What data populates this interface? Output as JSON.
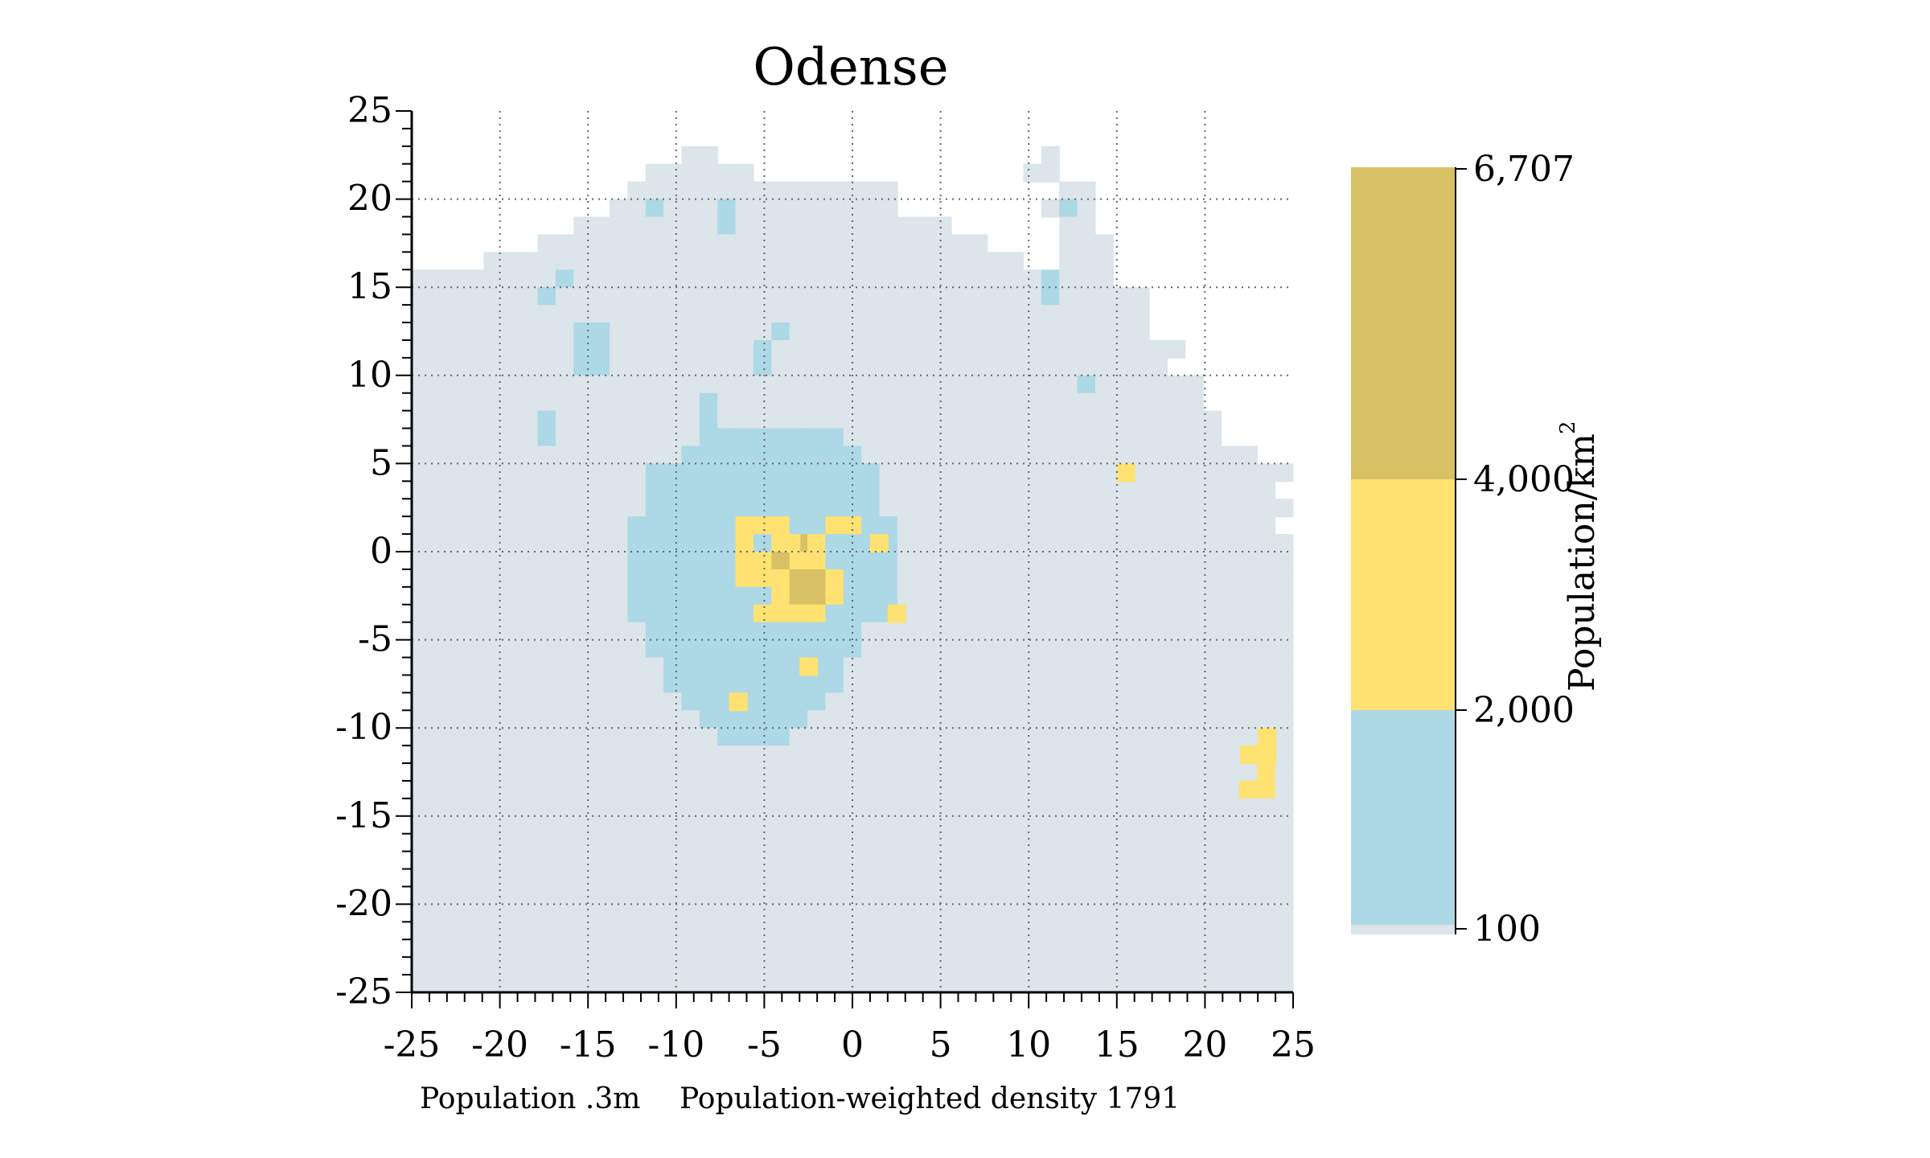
{
  "chart_data": {
    "type": "heatmap",
    "title": "Odense",
    "xlim": [
      -25,
      25
    ],
    "ylim": [
      -25,
      25
    ],
    "x_ticks": [
      "-25",
      "-20",
      "-15",
      "-10",
      "-5",
      "0",
      "5",
      "10",
      "15",
      "20",
      "25"
    ],
    "y_ticks": [
      "25",
      "20",
      "15",
      "10",
      "5",
      "0",
      "-5",
      "-10",
      "-15",
      "-20",
      "-25"
    ],
    "grid": "dotted",
    "cell_size_km": 1,
    "colorbar": {
      "title": "Population/km",
      "title_superscript": "2",
      "bins": [
        {
          "from": 0,
          "to": 100,
          "color": "#dbe5ea"
        },
        {
          "from": 100,
          "to": 2000,
          "color": "#add8e6"
        },
        {
          "from": 2000,
          "to": 4000,
          "color": "#ffe271"
        },
        {
          "from": 4000,
          "to": 6707,
          "color": "#d8c064"
        }
      ],
      "tick_labels": [
        "6,707",
        "4,000",
        "2,000",
        "100"
      ],
      "max": 6707
    },
    "footer": {
      "population": "Population .3m",
      "density": "Population-weighted density 1791"
    },
    "rows": [
      "...............................",
      ".............................................",
      "...............00..................0..........",
      ".............000000...............00..........",
      "............000000000000000.........00........",
      "...........0010001000000000........010........",
      ".........000000001000000000000......00........",
      ".......0000000000000000000000000....000.......",
      "....000000000000000000000000000000..000.......",
      "000000001000000000000000000000000001000.......",
      "00000001000000000000000000000000000100000.....",
      "00000000000000000000000000000000000000000.....",
      "00000000011000000000100000000000000000000.....",
      "0000000001100000000100000000000000000000000...",
      "000000000110000000010000000000000000000000....",
      "00000000000000000000000000000000000001000000..",
      "00000000000000001000000000000000000000000000..",
      "000000010000000010000000000000000000000000000.",
      "000000010000000011111111000000000000000000000.",
      "00000000000000011111111110000000000000000000000",
      "0000000000000111111111111100000000000000000000000",
      "000000000000011111111111110000000000000000000000.",
      "0000000000000111111111111100000000000000000000000",
      "000000000000111111222112211000000000000000000000.",
      "0000000000001111112123211110000000000000000000000",
      "0000000000001111112232211110000000000000000000000",
      "0000000000001111112223321110000000000000000000000",
      "0000000000001111111123321110000000000000000000000",
      "0000000000001111111222211110000000000000000000000",
      "0000000000000111111111111000000000000000000000000",
      "0000000000000111111111111000000000000000000000000",
      "0000000000000011111111110000000000000000000000000",
      "0000000000000011111111110000000000000000000000000",
      "0000000000000001111111100000000000000000000000000",
      "0000000000000000111111000000000000000000000000000",
      "0000000000000000011110000000000000000000000000000",
      "0000000000000000000000000000000000000000000000000",
      "0000000000000000000000000000000000000000000000020",
      "0000000000000000000000000000000000000000000000220",
      "0000000000000000000000000000000000000000000000000",
      "0000000000000000000000000000000000000000000000000",
      "0000000000000000000000000000000000000000000000000",
      "0000000000000000000000000000000000000000000000000",
      "0000000000000000000000000000000000000000000000000",
      "0000000000000000000000000000000000000000000000000",
      "0000000000000000000000000000000000000000000000000",
      "0000000000000000000000000000000000000000000000000",
      "0000000000000000000000000000000000000000000000000",
      "0000000000000000000000000000000000000000000000000",
      "0000000000000000000000000000000000000000000000000"
    ],
    "extra_cells": [
      {
        "x": -6.5,
        "y": -8.5,
        "bin": 2
      },
      {
        "x": -2.5,
        "y": -6.5,
        "bin": 2
      },
      {
        "x": -3.5,
        "y": 0.5,
        "bin": 2
      },
      {
        "x": 1.5,
        "y": 0.5,
        "bin": 2
      },
      {
        "x": 2.5,
        "y": -3.5,
        "bin": 2
      },
      {
        "x": 15.5,
        "y": 4.5,
        "bin": 2
      },
      {
        "x": 23.5,
        "y": -11.5,
        "bin": 2
      },
      {
        "x": 22.5,
        "y": -11.5,
        "bin": 2
      },
      {
        "x": 23.5,
        "y": -10.5,
        "bin": 2
      }
    ]
  }
}
